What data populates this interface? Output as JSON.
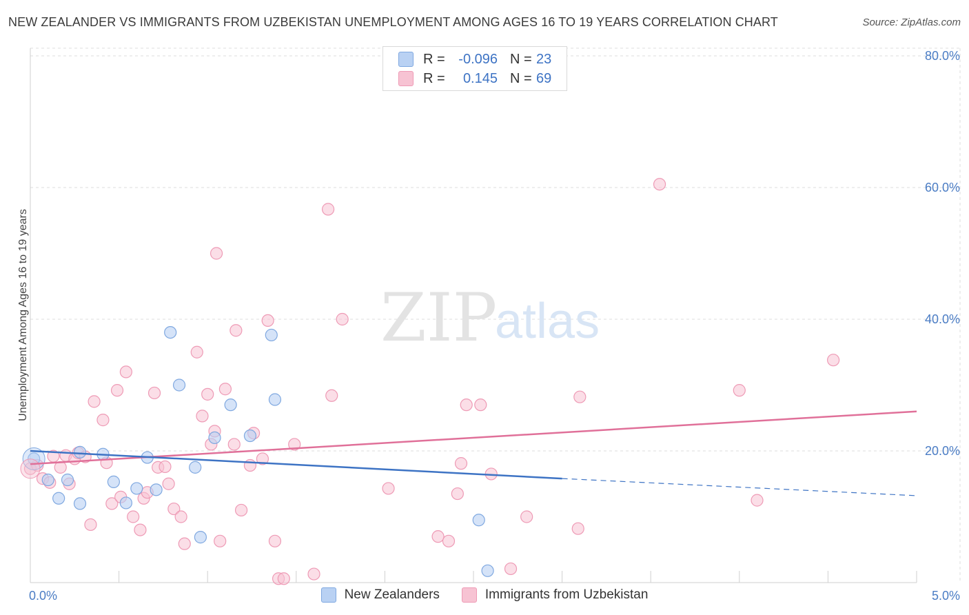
{
  "header": {
    "title": "NEW ZEALANDER VS IMMIGRANTS FROM UZBEKISTAN UNEMPLOYMENT AMONG AGES 16 TO 19 YEARS CORRELATION CHART",
    "source": "Source: ZipAtlas.com"
  },
  "watermark": {
    "zip": "ZIP",
    "atlas": "atlas"
  },
  "legend": {
    "rows": [
      {
        "r_label": "R =",
        "r_value": "-0.096",
        "n_label": "N =",
        "n_value": "23"
      },
      {
        "r_label": "R =",
        "r_value": "0.145",
        "n_label": "N =",
        "n_value": "69"
      }
    ]
  },
  "colors": {
    "blue_fill": "#b9d1f3",
    "blue_stroke": "#7fa8e0",
    "blue_line": "#3d73c4",
    "pink_fill": "#f7c3d3",
    "pink_stroke": "#ee9ab5",
    "pink_line": "#e07099",
    "grid": "#dddddd",
    "tick_text": "#4a7cc4"
  },
  "chart_data": {
    "type": "scatter",
    "title": "NEW ZEALANDER VS IMMIGRANTS FROM UZBEKISTAN UNEMPLOYMENT AMONG AGES 16 TO 19 YEARS CORRELATION CHART",
    "xlabel": "",
    "ylabel": "Unemployment Among Ages 16 to 19 years",
    "xlim": [
      0,
      5
    ],
    "ylim": [
      0,
      82
    ],
    "x_ticks": [
      "0.0%",
      "5.0%"
    ],
    "y_ticks": [
      {
        "value": 20,
        "label": "20.0%"
      },
      {
        "value": 40,
        "label": "40.0%"
      },
      {
        "value": 60,
        "label": "60.0%"
      },
      {
        "value": 80,
        "label": "80.0%"
      }
    ],
    "grid": true,
    "legend_position": "top-center",
    "series": [
      {
        "name": "New Zealanders",
        "color": "#b9d1f3",
        "points": [
          [
            0.02,
            18.8
          ],
          [
            0.1,
            15.6
          ],
          [
            0.16,
            12.8
          ],
          [
            0.21,
            15.6
          ],
          [
            0.28,
            12.0
          ],
          [
            0.28,
            19.8
          ],
          [
            0.41,
            19.5
          ],
          [
            0.47,
            15.3
          ],
          [
            0.54,
            12.1
          ],
          [
            0.6,
            14.3
          ],
          [
            0.66,
            19.0
          ],
          [
            0.71,
            14.1
          ],
          [
            0.79,
            38.0
          ],
          [
            0.84,
            30.0
          ],
          [
            0.93,
            17.5
          ],
          [
            0.96,
            6.9
          ],
          [
            1.04,
            22.0
          ],
          [
            1.13,
            27.0
          ],
          [
            1.24,
            22.3
          ],
          [
            1.36,
            37.6
          ],
          [
            1.38,
            27.8
          ],
          [
            2.53,
            9.5
          ],
          [
            2.58,
            1.8
          ]
        ],
        "trend": {
          "x0": 0.0,
          "y0": 20.0,
          "x1": 3.0,
          "y1": 15.8,
          "dashed_x1": 5.0,
          "dashed_y1": 13.2
        }
      },
      {
        "name": "Immigrants from Uzbekistan",
        "color": "#f7c3d3",
        "points": [
          [
            0.0,
            17.3
          ],
          [
            0.04,
            17.8
          ],
          [
            0.07,
            15.8
          ],
          [
            0.11,
            15.2
          ],
          [
            0.13,
            19.2
          ],
          [
            0.17,
            17.5
          ],
          [
            0.2,
            19.3
          ],
          [
            0.22,
            15.0
          ],
          [
            0.25,
            18.8
          ],
          [
            0.27,
            19.7
          ],
          [
            0.31,
            19.1
          ],
          [
            0.34,
            8.8
          ],
          [
            0.36,
            27.5
          ],
          [
            0.41,
            24.7
          ],
          [
            0.43,
            18.2
          ],
          [
            0.46,
            12.0
          ],
          [
            0.49,
            29.2
          ],
          [
            0.51,
            13.0
          ],
          [
            0.54,
            32.0
          ],
          [
            0.58,
            10.0
          ],
          [
            0.62,
            8.0
          ],
          [
            0.64,
            12.8
          ],
          [
            0.66,
            13.7
          ],
          [
            0.7,
            28.8
          ],
          [
            0.72,
            17.5
          ],
          [
            0.76,
            17.6
          ],
          [
            0.78,
            15.0
          ],
          [
            0.81,
            11.2
          ],
          [
            0.85,
            10.0
          ],
          [
            0.87,
            5.9
          ],
          [
            0.94,
            35.0
          ],
          [
            0.97,
            25.3
          ],
          [
            1.0,
            28.6
          ],
          [
            1.02,
            21.0
          ],
          [
            1.04,
            23.0
          ],
          [
            1.05,
            50.0
          ],
          [
            1.07,
            6.3
          ],
          [
            1.1,
            29.4
          ],
          [
            1.15,
            21.0
          ],
          [
            1.16,
            38.3
          ],
          [
            1.19,
            11.0
          ],
          [
            1.24,
            17.8
          ],
          [
            1.26,
            22.7
          ],
          [
            1.31,
            18.8
          ],
          [
            1.34,
            39.8
          ],
          [
            1.38,
            6.3
          ],
          [
            1.4,
            0.6
          ],
          [
            1.43,
            0.6
          ],
          [
            1.49,
            21.0
          ],
          [
            1.6,
            1.3
          ],
          [
            1.68,
            56.7
          ],
          [
            1.7,
            28.4
          ],
          [
            1.76,
            40.0
          ],
          [
            2.02,
            14.3
          ],
          [
            2.3,
            7.0
          ],
          [
            2.36,
            6.3
          ],
          [
            2.41,
            13.5
          ],
          [
            2.43,
            18.1
          ],
          [
            2.46,
            27.0
          ],
          [
            2.54,
            27.0
          ],
          [
            2.6,
            16.5
          ],
          [
            2.71,
            2.1
          ],
          [
            2.8,
            10.0
          ],
          [
            3.09,
            8.2
          ],
          [
            3.1,
            28.2
          ],
          [
            3.55,
            60.5
          ],
          [
            4.0,
            29.2
          ],
          [
            4.1,
            12.5
          ],
          [
            4.53,
            33.8
          ]
        ],
        "trend": {
          "x0": 0.0,
          "y0": 18.0,
          "x1": 5.0,
          "y1": 26.0
        }
      }
    ]
  }
}
